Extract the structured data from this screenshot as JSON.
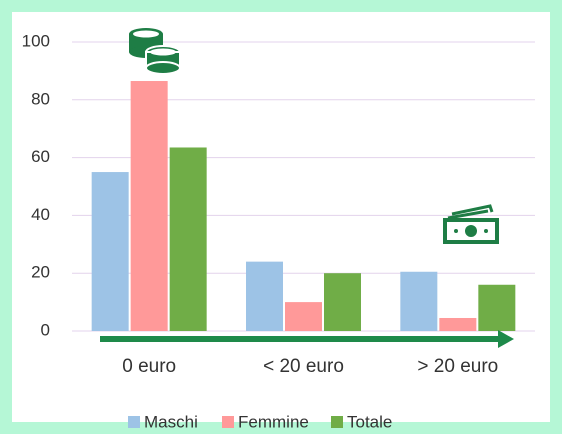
{
  "chart_data": {
    "type": "bar",
    "categories": [
      "0 euro",
      "< 20 euro",
      "> 20 euro"
    ],
    "series": [
      {
        "name": "Maschi",
        "color": "#9dc3e6",
        "values": [
          55,
          24,
          20.5
        ]
      },
      {
        "name": "Femmine",
        "color": "#ff9999",
        "values": [
          86.5,
          10,
          4.5
        ]
      },
      {
        "name": "Totale",
        "color": "#70ad47",
        "values": [
          63.5,
          20,
          16
        ]
      }
    ],
    "ylim": [
      0,
      100
    ],
    "yticks": [
      0,
      20,
      40,
      60,
      80,
      100
    ],
    "grid": true,
    "legend": "bottom"
  }
}
